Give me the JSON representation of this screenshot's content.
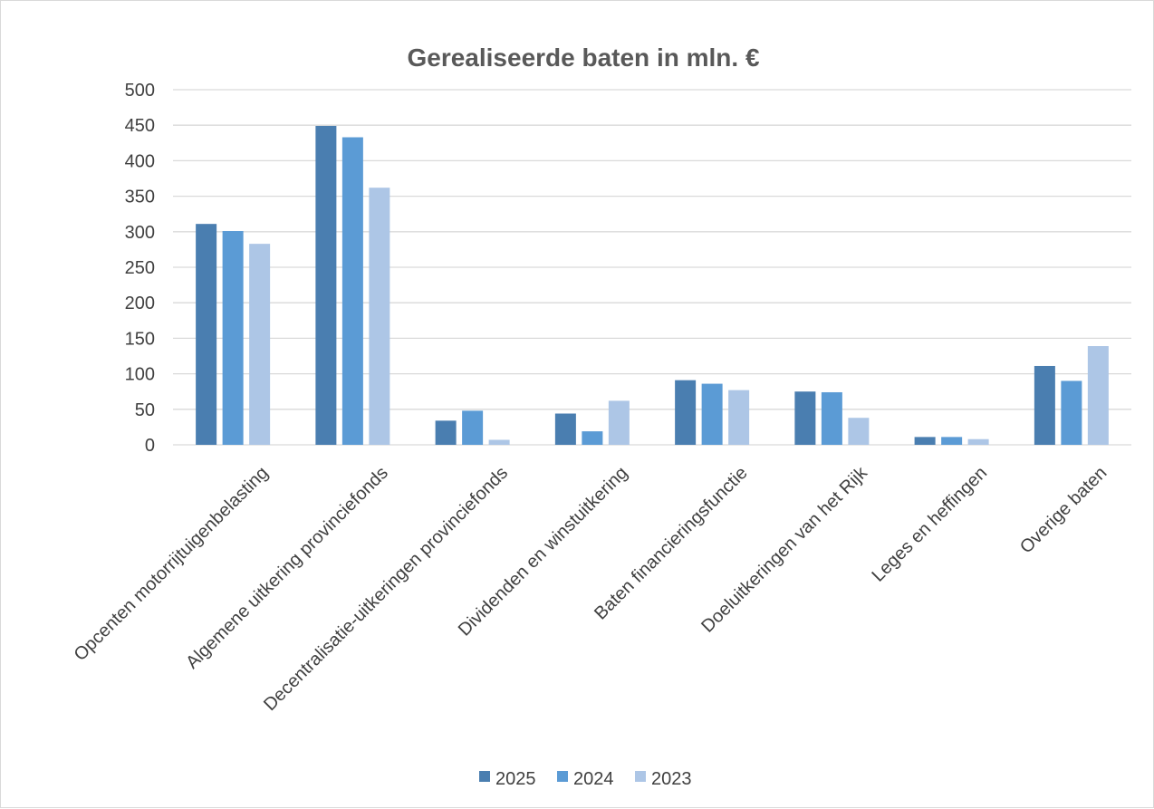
{
  "chart_data": {
    "type": "bar",
    "title": "Gerealiseerde baten in mln. €",
    "xlabel": "",
    "ylabel": "",
    "ylim": [
      0,
      500
    ],
    "yticks": [
      0,
      50,
      100,
      150,
      200,
      250,
      300,
      350,
      400,
      450,
      500
    ],
    "grid": true,
    "legend_position": "bottom",
    "categories": [
      "Opcenten motorrijtuigenbelasting",
      "Algemene uitkering provinciefonds",
      "Decentralisatie-uitkeringen provinciefonds",
      "Dividenden en winstuitkering",
      "Baten financieringsfunctie",
      "Doeluitkeringen van het Rijk",
      "Leges en heffingen",
      "Overige baten"
    ],
    "series": [
      {
        "name": "2025",
        "color": "#4a7eb0",
        "values": [
          311,
          449,
          34,
          44,
          91,
          75,
          11,
          111
        ]
      },
      {
        "name": "2024",
        "color": "#5b9bd5",
        "values": [
          301,
          433,
          48,
          19,
          86,
          74,
          11,
          90
        ]
      },
      {
        "name": "2023",
        "color": "#adc6e6",
        "values": [
          283,
          362,
          7,
          62,
          77,
          38,
          8,
          139
        ]
      }
    ]
  }
}
